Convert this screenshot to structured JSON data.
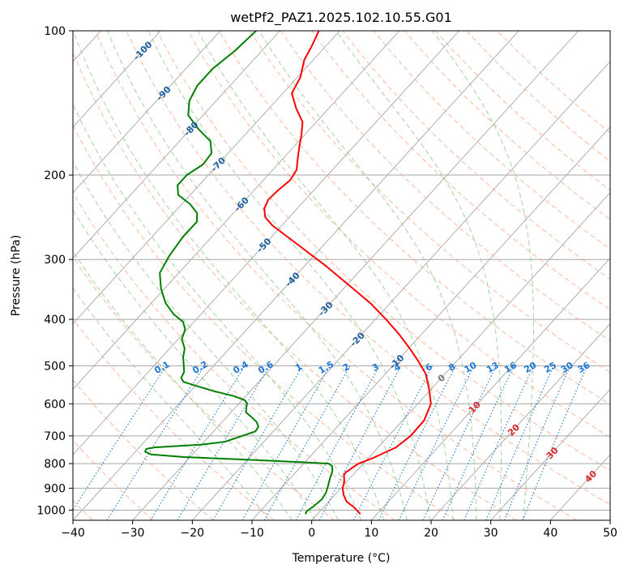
{
  "chart_data": {
    "type": "line",
    "title": "wetPf2_PAZ1.2025.102.10.55.G01",
    "xlabel": "Temperature (°C)",
    "ylabel": "Pressure (hPa)",
    "xlim": [
      -40,
      50
    ],
    "ylim": [
      1050,
      100
    ],
    "y_scale": "log",
    "skew": "skew-T",
    "grid": true,
    "x_ticks": [
      "−40",
      "−30",
      "−20",
      "−10",
      "0",
      "10",
      "20",
      "30",
      "40",
      "50"
    ],
    "x_tick_values": [
      -40,
      -30,
      -20,
      -10,
      0,
      10,
      20,
      30,
      40,
      50
    ],
    "y_ticks": [
      "100",
      "200",
      "300",
      "400",
      "500",
      "600",
      "700",
      "800",
      "900",
      "1000"
    ],
    "y_tick_values": [
      100,
      200,
      300,
      400,
      500,
      600,
      700,
      800,
      900,
      1000
    ],
    "series": [
      {
        "color": "#ff0000",
        "pressure": [
          1019,
          1005,
          985,
          960,
          930,
          900,
          870,
          845,
          835,
          825,
          815,
          800,
          780,
          760,
          740,
          700,
          650,
          600,
          560,
          520,
          490,
          460,
          430,
          400,
          370,
          340,
          310,
          280,
          255,
          245,
          235,
          225,
          215,
          205,
          195,
          185,
          175,
          165,
          155,
          145,
          135,
          125,
          115,
          108,
          100
        ],
        "temperature": [
          7.2,
          6.3,
          5.0,
          3.0,
          1.5,
          0.3,
          -0.5,
          -1.5,
          -1.6,
          -1.4,
          -1.2,
          -0.8,
          0.7,
          1.8,
          3.0,
          3.7,
          3.6,
          2.2,
          -0.3,
          -3.2,
          -6.3,
          -9.8,
          -13.7,
          -18.2,
          -23.3,
          -29.5,
          -36.3,
          -44.2,
          -51.5,
          -54.0,
          -55.5,
          -56.2,
          -56.0,
          -55.5,
          -56.0,
          -57.5,
          -59.0,
          -60.5,
          -62.3,
          -65.5,
          -68.5,
          -69.5,
          -71.5,
          -72.3,
          -73.5
        ]
      },
      {
        "color": "#008000",
        "pressure": [
          1019,
          1005,
          980,
          950,
          920,
          890,
          860,
          830,
          810,
          800,
          795,
          785,
          775,
          765,
          755,
          745,
          740,
          730,
          720,
          700,
          685,
          670,
          655,
          640,
          625,
          610,
          600,
          590,
          578,
          565,
          550,
          540,
          530,
          515,
          500,
          480,
          460,
          440,
          420,
          405,
          390,
          370,
          345,
          320,
          295,
          270,
          250,
          240,
          230,
          220,
          210,
          200,
          190,
          180,
          170,
          160,
          150,
          140,
          130,
          120,
          110,
          100
        ],
        "temperature": [
          -2.0,
          -2.2,
          -1.8,
          -1.5,
          -1.8,
          -2.5,
          -3.3,
          -4.0,
          -4.8,
          -5.8,
          -10.0,
          -20.0,
          -31.0,
          -37.0,
          -38.4,
          -38.6,
          -37.5,
          -30.0,
          -26.5,
          -24.5,
          -23.0,
          -23.2,
          -24.2,
          -25.8,
          -27.5,
          -28.2,
          -28.6,
          -29.5,
          -32.0,
          -36.0,
          -40.0,
          -42.6,
          -43.6,
          -44.0,
          -45.0,
          -46.4,
          -47.5,
          -49.4,
          -50.3,
          -51.8,
          -54.6,
          -57.6,
          -60.6,
          -63.2,
          -64.2,
          -64.8,
          -64.8,
          -66.1,
          -68.6,
          -72.0,
          -73.6,
          -73.6,
          -72.5,
          -72.8,
          -74.8,
          -78.8,
          -82.5,
          -84.5,
          -85.5,
          -85.5,
          -84.5,
          -84.0
        ]
      }
    ],
    "dry_adiabat_labels": [
      "-100",
      "-90",
      "-80",
      "-70",
      "-60",
      "-50",
      "-40",
      "-30",
      "-20",
      "-10"
    ],
    "dry_adiabat_label_values": [
      -100,
      -90,
      -80,
      -70,
      -60,
      -50,
      -40,
      -30,
      -20,
      -10
    ],
    "moist_adiabat_labels": [
      "0",
      "10",
      "20",
      "30",
      "40"
    ],
    "moist_adiabat_label_values": [
      0,
      10,
      20,
      30,
      40
    ],
    "mixing_ratio_labels": [
      "0.1",
      "0.2",
      "0.4",
      "0.6",
      "1",
      "1.5",
      "2",
      "3",
      "4",
      "6",
      "8",
      "10",
      "13",
      "16",
      "20",
      "25",
      "30",
      "36"
    ],
    "mixing_ratio_values": [
      0.1,
      0.2,
      0.4,
      0.6,
      1,
      1.5,
      2,
      3,
      4,
      6,
      8,
      10,
      13,
      16,
      20,
      25,
      30,
      36
    ],
    "colors": {
      "isotherm": "#a6a6a6",
      "dry_adiabat": "#ffa07a",
      "moist_adiabat": "#7fbf7f",
      "mixing_ratio": "#1f77d4",
      "dry_label": "#1f5fa0",
      "moist_label": "#d62728",
      "axis": "#000000"
    }
  }
}
